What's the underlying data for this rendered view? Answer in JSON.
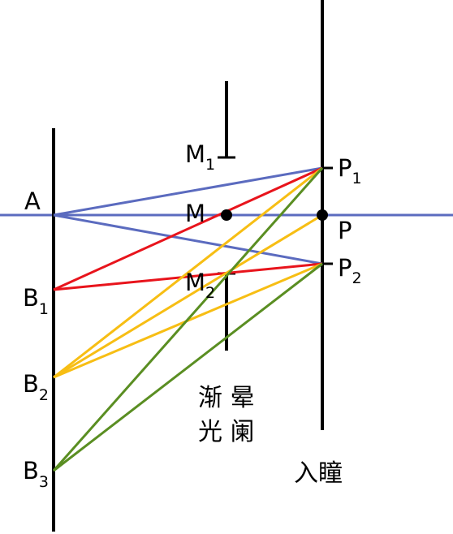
{
  "colors": {
    "blue": "#5B6BBF",
    "red": "#E8141C",
    "yellow": "#F7BE14",
    "green": "#5A8E22",
    "black": "#000000"
  },
  "labels": {
    "A": "A",
    "B1": {
      "main": "B",
      "sub": "1"
    },
    "B2": {
      "main": "B",
      "sub": "2"
    },
    "B3": {
      "main": "B",
      "sub": "3"
    },
    "M": "M",
    "M1": {
      "main": "M",
      "sub": "1"
    },
    "M2": {
      "main": "M",
      "sub": "2"
    },
    "P": "P",
    "P1": {
      "main": "P",
      "sub": "1"
    },
    "P2": {
      "main": "P",
      "sub": "2"
    }
  },
  "vignetting_stop": {
    "line1": "渐 晕",
    "line2": "光 阑"
  },
  "entrance_pupil": "入瞳",
  "rays": [
    {
      "from": "A",
      "to": "P1",
      "color": "blue"
    },
    {
      "from": "A",
      "to": "P2",
      "color": "blue"
    },
    {
      "from": "B1",
      "to": "P1",
      "color": "red"
    },
    {
      "from": "B1",
      "to": "P2",
      "color": "red"
    },
    {
      "from": "B2",
      "to": "P1",
      "color": "yellow"
    },
    {
      "from": "B2",
      "to": "P2",
      "color": "yellow"
    },
    {
      "from": "B2",
      "to": "P",
      "color": "yellow"
    },
    {
      "from": "B3",
      "to": "P1",
      "color": "green"
    },
    {
      "from": "B3",
      "to": "P2",
      "color": "green"
    }
  ]
}
